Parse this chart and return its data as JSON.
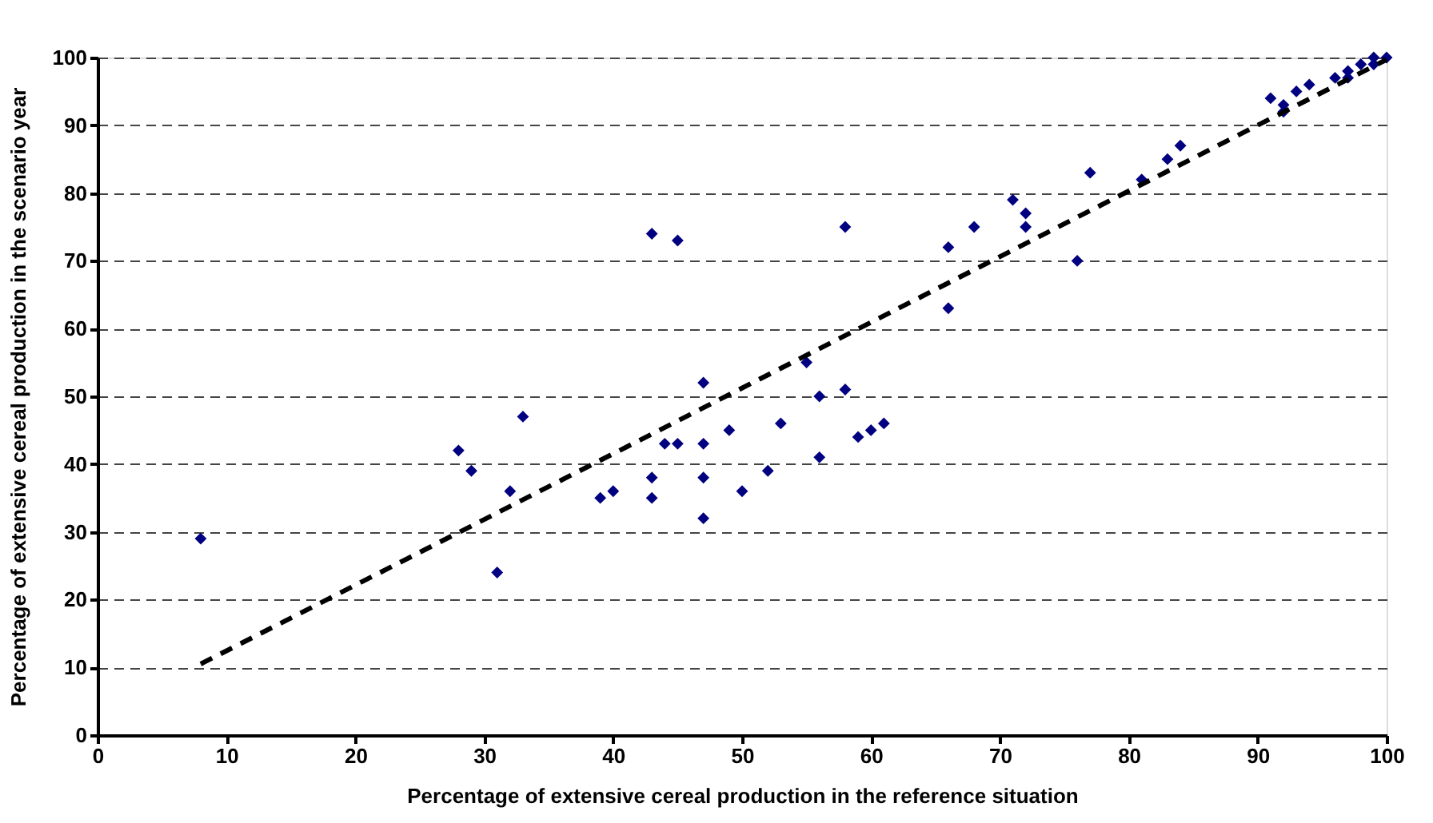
{
  "chart_data": {
    "type": "scatter",
    "xlabel": "Percentage of extensive cereal production in the reference situation",
    "ylabel": "Percentage of extensive cereal production in the scenario year",
    "xlim": [
      0,
      100
    ],
    "ylim": [
      0,
      100
    ],
    "xticks": [
      0,
      10,
      20,
      30,
      40,
      50,
      60,
      70,
      80,
      90,
      100
    ],
    "yticks": [
      0,
      10,
      20,
      30,
      40,
      50,
      60,
      70,
      80,
      90,
      100
    ],
    "grid": "y",
    "legend": false,
    "series": [
      {
        "color": "#000080",
        "marker": "diamond",
        "x": [
          8,
          28,
          29,
          31,
          32,
          33,
          39,
          40,
          43,
          43,
          43,
          44,
          45,
          45,
          47,
          47,
          47,
          47,
          49,
          50,
          52,
          53,
          55,
          56,
          56,
          58,
          58,
          59,
          60,
          61,
          66,
          66,
          68,
          71,
          72,
          72,
          76,
          77,
          81,
          83,
          84,
          91,
          92,
          92,
          93,
          94,
          96,
          97,
          97,
          98,
          99,
          99,
          100
        ],
        "values": [
          29,
          42,
          39,
          24,
          36,
          47,
          35,
          36,
          74,
          38,
          35,
          43,
          73,
          43,
          52,
          43,
          38,
          32,
          45,
          36,
          39,
          46,
          55,
          50,
          41,
          75,
          51,
          44,
          45,
          46,
          72,
          63,
          75,
          79,
          77,
          75,
          70,
          83,
          82,
          85,
          87,
          94,
          92,
          93,
          95,
          96,
          97,
          98,
          97,
          99,
          100,
          99,
          100
        ]
      },
      {
        "type": "line",
        "color": "#000000",
        "line_style": "dashed",
        "marker": "none",
        "x": [
          8,
          100
        ],
        "values": [
          10.5,
          99.7
        ]
      }
    ]
  }
}
